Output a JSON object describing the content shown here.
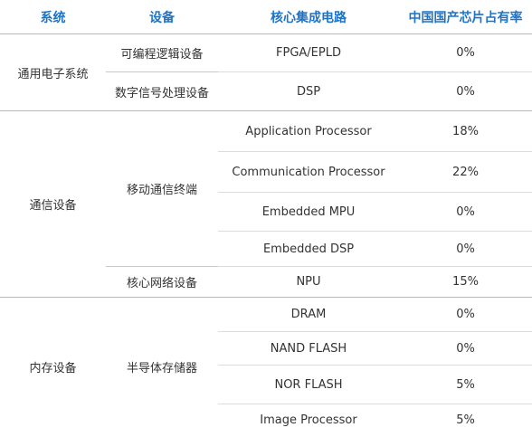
{
  "table": {
    "headers": [
      "系统",
      "设备",
      "核心集成电路",
      "中国国产芯片占有率"
    ],
    "groups": [
      {
        "system": "通用电子系统",
        "devices": [
          {
            "name": "可编程逻辑设备",
            "rows": [
              {
                "circuit": "FPGA/EPLD",
                "share": "0%"
              }
            ]
          },
          {
            "name": "数字信号处理设备",
            "rows": [
              {
                "circuit": "DSP",
                "share": "0%"
              }
            ]
          }
        ]
      },
      {
        "system": "通信设备",
        "devices": [
          {
            "name": "移动通信终端",
            "rows": [
              {
                "circuit": "Application Processor",
                "share": "18%"
              },
              {
                "circuit": "Communication Processor",
                "share": "22%"
              },
              {
                "circuit": "Embedded MPU",
                "share": "0%"
              },
              {
                "circuit": "Embedded DSP",
                "share": "0%"
              }
            ]
          },
          {
            "name": "核心网络设备",
            "rows": [
              {
                "circuit": "NPU",
                "share": "15%"
              }
            ]
          }
        ]
      },
      {
        "system": "内存设备",
        "devices": [
          {
            "name": "半导体存储器",
            "rows": [
              {
                "circuit": "DRAM",
                "share": "0%"
              },
              {
                "circuit": "NAND FLASH",
                "share": "0%"
              },
              {
                "circuit": "NOR FLASH",
                "share": "5%"
              },
              {
                "circuit": "Image Processor",
                "share": "5%"
              }
            ]
          }
        ]
      }
    ]
  },
  "colors": {
    "header_text": "#1e73c6",
    "body_text": "#333333",
    "divider": "#b9b9b9"
  }
}
